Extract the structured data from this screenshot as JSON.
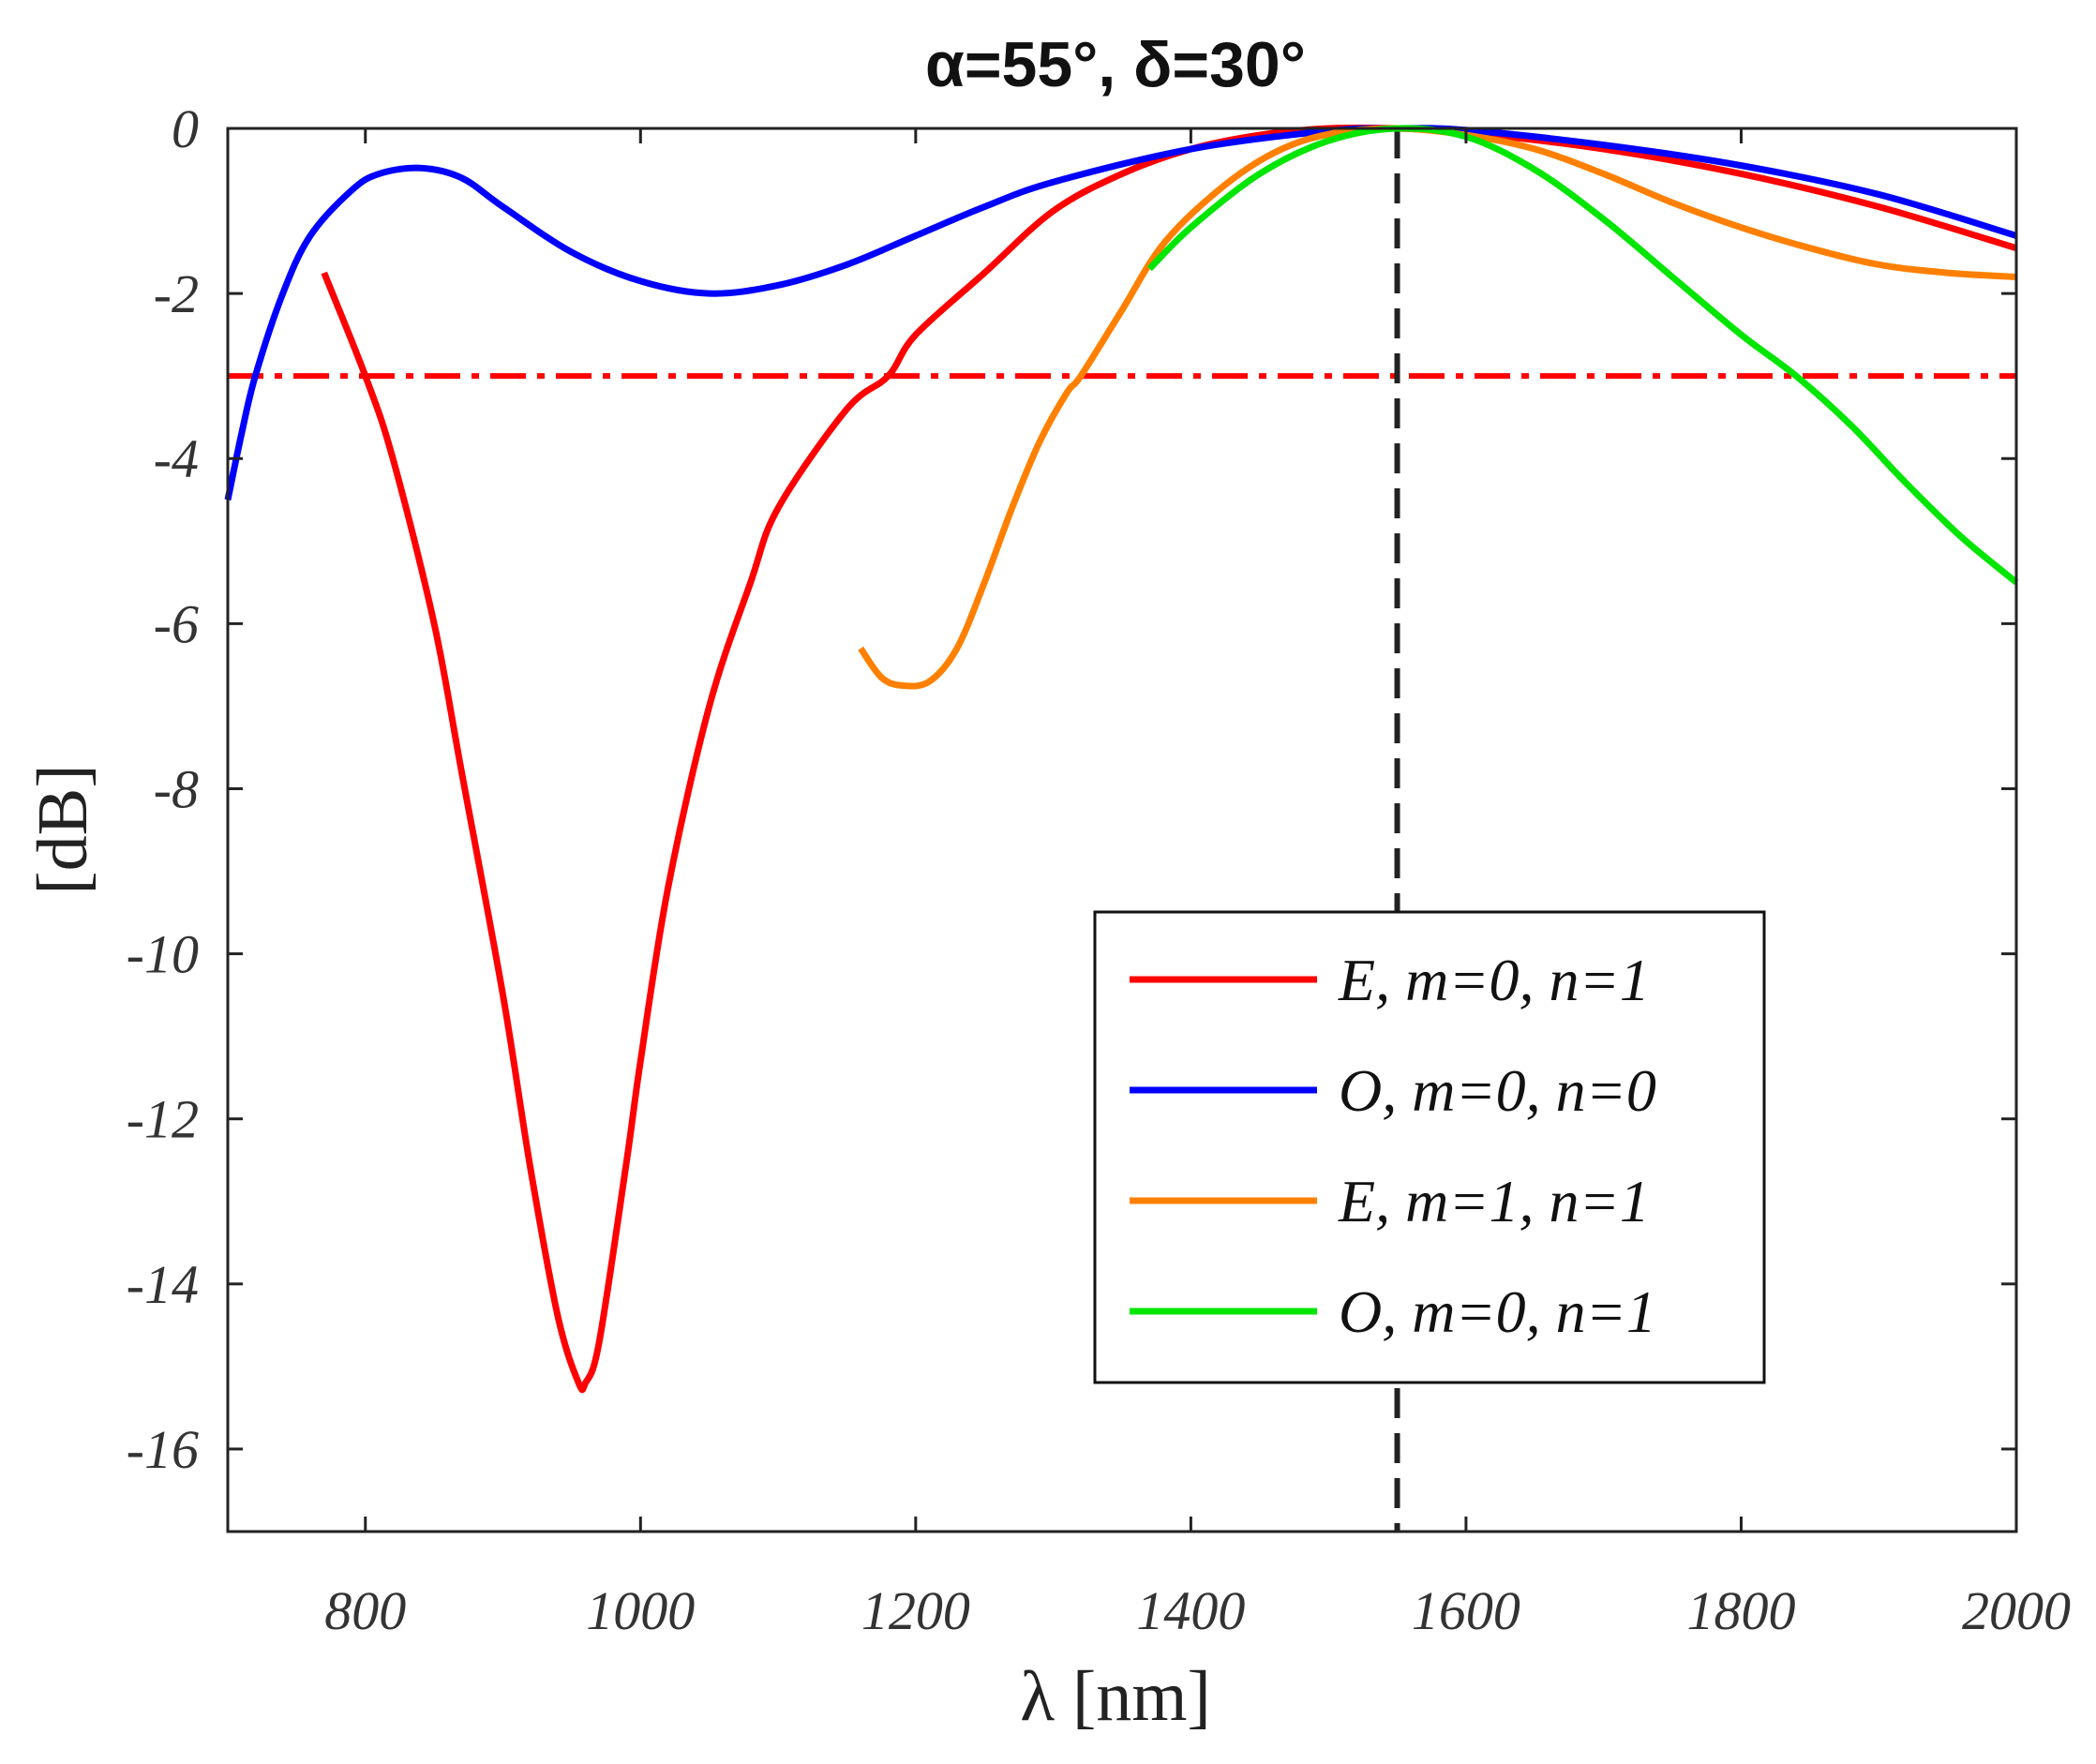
{
  "chart_data": {
    "type": "line",
    "title": "α=55°, δ=30°",
    "xlabel": "λ [nm]",
    "ylabel": "[dB]",
    "xlim": [
      700,
      2000
    ],
    "ylim": [
      -17,
      0
    ],
    "xticks": [
      800,
      1000,
      1200,
      1400,
      1600,
      1800,
      2000
    ],
    "yticks": [
      0,
      -2,
      -4,
      -6,
      -8,
      -10,
      -12,
      -14,
      -16
    ],
    "legend_position": "lower-right",
    "series": [
      {
        "name": "E, m=0, n=1",
        "color": "#ff0000",
        "points": [
          [
            770,
            -1.75
          ],
          [
            800,
            -3.0
          ],
          [
            820,
            -4.0
          ],
          [
            850,
            -6.0
          ],
          [
            870,
            -7.8
          ],
          [
            900,
            -10.5
          ],
          [
            920,
            -12.6
          ],
          [
            940,
            -14.4
          ],
          [
            955,
            -15.2
          ],
          [
            960,
            -15.2
          ],
          [
            970,
            -14.7
          ],
          [
            990,
            -12.5
          ],
          [
            1000,
            -11.3
          ],
          [
            1020,
            -9.2
          ],
          [
            1050,
            -7.0
          ],
          [
            1080,
            -5.5
          ],
          [
            1100,
            -4.6
          ],
          [
            1150,
            -3.4
          ],
          [
            1180,
            -3.0
          ],
          [
            1200,
            -2.5
          ],
          [
            1250,
            -1.75
          ],
          [
            1300,
            -1.0
          ],
          [
            1350,
            -0.55
          ],
          [
            1400,
            -0.25
          ],
          [
            1450,
            -0.08
          ],
          [
            1500,
            0.0
          ],
          [
            1550,
            0.0
          ],
          [
            1600,
            -0.05
          ],
          [
            1700,
            -0.25
          ],
          [
            1800,
            -0.55
          ],
          [
            1900,
            -0.95
          ],
          [
            2000,
            -1.45
          ]
        ]
      },
      {
        "name": "O, m=0, n=0",
        "color": "#0000ff",
        "points": [
          [
            700,
            -4.5
          ],
          [
            710,
            -3.7
          ],
          [
            720,
            -3.0
          ],
          [
            740,
            -2.0
          ],
          [
            760,
            -1.3
          ],
          [
            790,
            -0.75
          ],
          [
            810,
            -0.55
          ],
          [
            840,
            -0.48
          ],
          [
            870,
            -0.6
          ],
          [
            900,
            -0.95
          ],
          [
            950,
            -1.5
          ],
          [
            1000,
            -1.85
          ],
          [
            1050,
            -2.0
          ],
          [
            1100,
            -1.9
          ],
          [
            1150,
            -1.65
          ],
          [
            1200,
            -1.3
          ],
          [
            1250,
            -0.95
          ],
          [
            1300,
            -0.65
          ],
          [
            1400,
            -0.25
          ],
          [
            1500,
            -0.03
          ],
          [
            1550,
            0.0
          ],
          [
            1600,
            -0.02
          ],
          [
            1700,
            -0.2
          ],
          [
            1800,
            -0.45
          ],
          [
            1900,
            -0.8
          ],
          [
            2000,
            -1.3
          ]
        ]
      },
      {
        "name": "E, m=1, n=1",
        "color": "#ff8000",
        "points": [
          [
            1160,
            -6.3
          ],
          [
            1175,
            -6.65
          ],
          [
            1190,
            -6.75
          ],
          [
            1210,
            -6.7
          ],
          [
            1230,
            -6.3
          ],
          [
            1250,
            -5.5
          ],
          [
            1270,
            -4.6
          ],
          [
            1290,
            -3.8
          ],
          [
            1310,
            -3.2
          ],
          [
            1320,
            -3.0
          ],
          [
            1350,
            -2.2
          ],
          [
            1380,
            -1.4
          ],
          [
            1420,
            -0.75
          ],
          [
            1460,
            -0.3
          ],
          [
            1500,
            -0.07
          ],
          [
            1550,
            0.0
          ],
          [
            1600,
            -0.08
          ],
          [
            1650,
            -0.25
          ],
          [
            1700,
            -0.55
          ],
          [
            1750,
            -0.9
          ],
          [
            1800,
            -1.2
          ],
          [
            1850,
            -1.45
          ],
          [
            1900,
            -1.65
          ],
          [
            1950,
            -1.75
          ],
          [
            2000,
            -1.8
          ]
        ]
      },
      {
        "name": "O, m=0, n=1",
        "color": "#00e600",
        "points": [
          [
            1370,
            -1.7
          ],
          [
            1400,
            -1.2
          ],
          [
            1450,
            -0.55
          ],
          [
            1500,
            -0.15
          ],
          [
            1550,
            0.0
          ],
          [
            1600,
            -0.1
          ],
          [
            1650,
            -0.5
          ],
          [
            1700,
            -1.1
          ],
          [
            1750,
            -1.8
          ],
          [
            1800,
            -2.5
          ],
          [
            1840,
            -3.0
          ],
          [
            1880,
            -3.6
          ],
          [
            1920,
            -4.3
          ],
          [
            1960,
            -4.95
          ],
          [
            2000,
            -5.5
          ]
        ]
      }
    ],
    "reference_lines": [
      {
        "orientation": "horizontal",
        "value": -3,
        "style": "dash-dot",
        "color": "#ff0000"
      },
      {
        "orientation": "vertical",
        "value": 1550,
        "style": "dashed",
        "color": "#222222"
      }
    ]
  }
}
